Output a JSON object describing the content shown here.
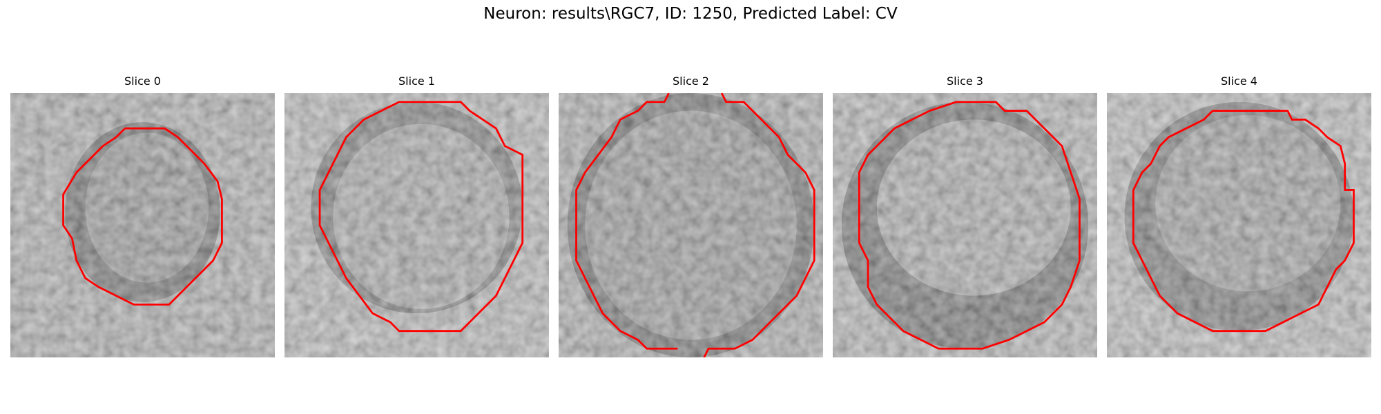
{
  "figure": {
    "title": "Neuron: results\\RGC7, ID: 1250, Predicted Label: CV"
  },
  "panels": [
    {
      "title": "Slice 0"
    },
    {
      "title": "Slice 1"
    },
    {
      "title": "Slice 2"
    },
    {
      "title": "Slice 3"
    },
    {
      "title": "Slice 4"
    }
  ],
  "colors": {
    "contour": "#ff0000",
    "background": "#ffffff"
  }
}
